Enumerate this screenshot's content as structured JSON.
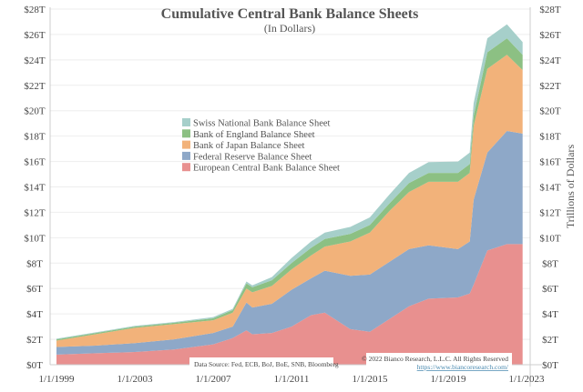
{
  "chart_data": {
    "type": "area",
    "stacked": true,
    "title": "Cumulative Central Bank Balance Sheets",
    "subtitle": "(In Dollars)",
    "ylabel": "Trillions of Dollars",
    "ylim": [
      0,
      28
    ],
    "y_ticks": [
      "$0T",
      "$2T",
      "$4T",
      "$6T",
      "$8T",
      "$10T",
      "$12T",
      "$14T",
      "$16T",
      "$18T",
      "$20T",
      "$22T",
      "$24T",
      "$26T",
      "$28T"
    ],
    "x_ticks": [
      "1/1/1999",
      "1/1/2003",
      "1/1/2007",
      "1/1/2011",
      "1/1/2015",
      "1/1/2019",
      "1/1/2023"
    ],
    "grid": true,
    "legend_position": "center-left",
    "x": [
      1999,
      2001,
      2003,
      2005,
      2007,
      2008.0,
      2008.7,
      2009.0,
      2010,
      2011,
      2012,
      2012.7,
      2014,
      2015,
      2016,
      2017,
      2018,
      2019.5,
      2020.1,
      2020.3,
      2021,
      2022,
      2022.8
    ],
    "series": [
      {
        "name": "European Central Bank Balance Sheet",
        "color": "#e8908f",
        "values": [
          0.8,
          0.9,
          1.0,
          1.2,
          1.6,
          2.1,
          2.7,
          2.4,
          2.5,
          3.0,
          3.9,
          4.1,
          2.8,
          2.6,
          3.6,
          4.6,
          5.2,
          5.3,
          5.6,
          6.3,
          9.0,
          9.5,
          9.5
        ]
      },
      {
        "name": "Federal Reserve Balance Sheet",
        "color": "#8ea8c8",
        "values": [
          0.6,
          0.6,
          0.7,
          0.8,
          0.9,
          0.9,
          2.2,
          2.1,
          2.3,
          2.9,
          2.9,
          3.3,
          4.2,
          4.5,
          4.5,
          4.5,
          4.2,
          3.8,
          4.1,
          6.7,
          7.7,
          8.9,
          8.7
        ]
      },
      {
        "name": "Bank of Japan Balance Sheet",
        "color": "#f2b27a",
        "values": [
          0.5,
          0.9,
          1.2,
          1.2,
          1.0,
          1.1,
          1.1,
          1.2,
          1.4,
          1.6,
          1.8,
          1.9,
          2.7,
          3.3,
          4.0,
          4.5,
          5.0,
          5.3,
          5.4,
          5.8,
          6.6,
          6.0,
          5.0
        ]
      },
      {
        "name": "Bank of England Balance Sheet",
        "color": "#8cc083",
        "values": [
          0.1,
          0.1,
          0.1,
          0.1,
          0.15,
          0.2,
          0.4,
          0.4,
          0.45,
          0.5,
          0.6,
          0.6,
          0.6,
          0.6,
          0.6,
          0.7,
          0.7,
          0.7,
          0.7,
          0.8,
          1.3,
          1.3,
          1.2
        ]
      },
      {
        "name": "Swiss National Bank Balance Sheet",
        "color": "#a6cfca",
        "values": [
          0.05,
          0.05,
          0.06,
          0.06,
          0.1,
          0.1,
          0.15,
          0.15,
          0.25,
          0.4,
          0.5,
          0.5,
          0.55,
          0.6,
          0.7,
          0.8,
          0.85,
          0.9,
          0.9,
          1.0,
          1.1,
          1.1,
          1.0
        ]
      }
    ],
    "annotations": {
      "source": "Data Source: Fed, ECB, BoJ, BoE, SNB, Bloomberg",
      "copyright": "© 2022 Bianco Research, L.L.C. All Rights Reserved",
      "url": "https://www.biancoresearch.com/"
    }
  }
}
